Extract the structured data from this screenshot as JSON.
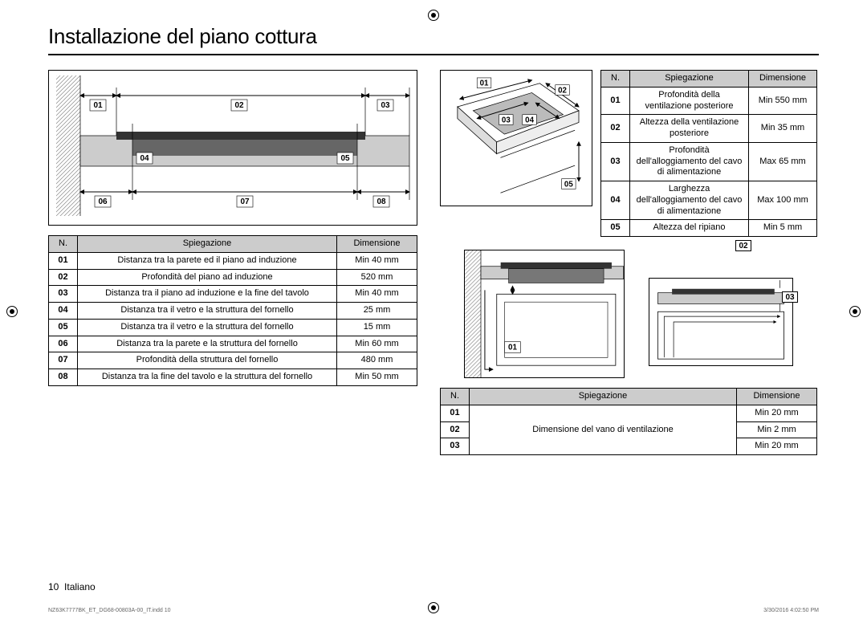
{
  "title": "Installazione del piano cottura",
  "footer_page": "10",
  "footer_lang": "Italiano",
  "meta_left": "NZ63K7777BK_ET_DG68-00803A-00_IT.indd   10",
  "meta_right": "3/30/2016   4:02:50 PM",
  "table1": {
    "headers": [
      "N.",
      "Spiegazione",
      "Dimensione"
    ],
    "rows": [
      [
        "01",
        "Distanza tra la parete ed il piano ad induzione",
        "Min 40 mm"
      ],
      [
        "02",
        "Profondità del piano ad induzione",
        "520 mm"
      ],
      [
        "03",
        "Distanza tra il piano ad induzione e la fine del tavolo",
        "Min 40 mm"
      ],
      [
        "04",
        "Distanza tra il vetro e la struttura del fornello",
        "25 mm"
      ],
      [
        "05",
        "Distanza tra il vetro e la struttura del fornello",
        "15 mm"
      ],
      [
        "06",
        "Distanza tra la parete e la struttura del fornello",
        "Min 60 mm"
      ],
      [
        "07",
        "Profondità della struttura del fornello",
        "480 mm"
      ],
      [
        "08",
        "Distanza tra la fine del tavolo e la struttura del fornello",
        "Min 50 mm"
      ]
    ]
  },
  "table2": {
    "headers": [
      "N.",
      "Spiegazione",
      "Dimensione"
    ],
    "rows": [
      [
        "01",
        "Profondità della ventilazione posteriore",
        "Min 550 mm"
      ],
      [
        "02",
        "Altezza della ventilazione posteriore",
        "Min 35 mm"
      ],
      [
        "03",
        "Profondità dell'alloggiamento del cavo di alimentazione",
        "Max 65 mm"
      ],
      [
        "04",
        "Larghezza dell'alloggiamento del cavo di alimentazione",
        "Max 100 mm"
      ],
      [
        "05",
        "Altezza del ripiano",
        "Min 5 mm"
      ]
    ]
  },
  "table3": {
    "headers": [
      "N.",
      "Spiegazione",
      "Dimensione"
    ],
    "span_text": "Dimensione del vano di ventilazione",
    "rows": [
      [
        "01",
        "Min 20 mm"
      ],
      [
        "02",
        "Min 2 mm"
      ],
      [
        "03",
        "Min 20 mm"
      ]
    ]
  },
  "dia1": {
    "labels": [
      "01",
      "02",
      "03",
      "04",
      "05",
      "06",
      "07",
      "08"
    ]
  },
  "dia2": {
    "labels": [
      "01",
      "02",
      "03",
      "04",
      "05"
    ]
  },
  "dia3": {
    "labels": [
      "01",
      "02",
      "03"
    ]
  }
}
